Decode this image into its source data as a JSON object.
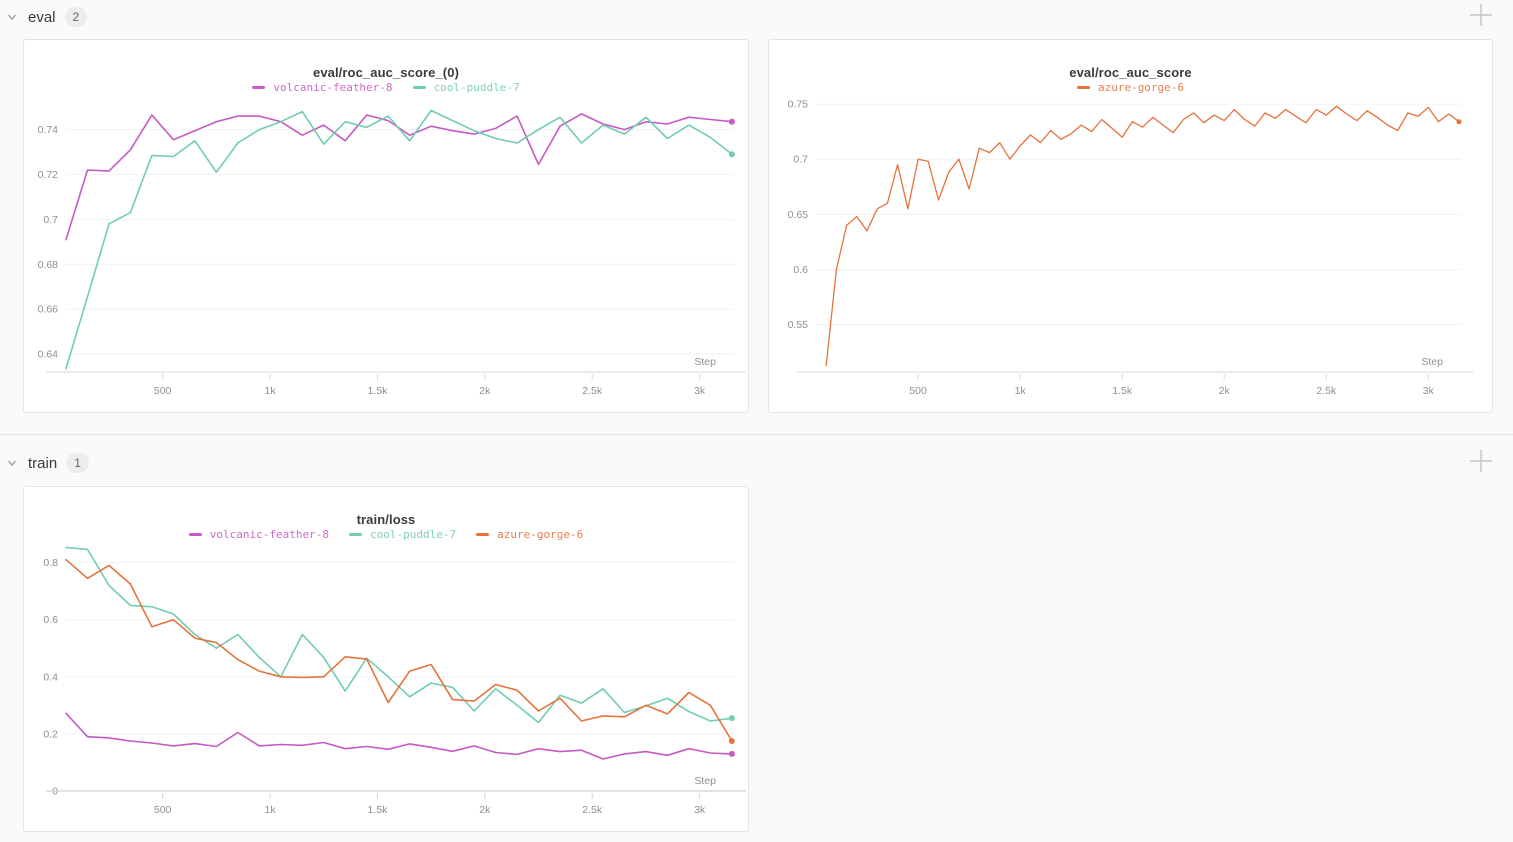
{
  "page": {
    "background": "#fafafa",
    "accent_colors": {
      "volcanic_feather_8": "#C65AC4",
      "cool_puddle_7": "#71CCB2",
      "azure_gorge_6": "#E6723C"
    }
  },
  "sections": [
    {
      "label": "eval",
      "count": "2"
    },
    {
      "label": "train",
      "count": "1"
    }
  ],
  "icons": {
    "collapse_chevron": "chevron-down-icon",
    "add_panel": "plus-icon"
  },
  "chart_data": [
    {
      "type": "line",
      "title": "eval/roc_auc_score_(0)",
      "xlabel": "Step",
      "legend_position": "top-center",
      "grid": "horizontal-only",
      "xlim": [
        50,
        3160
      ],
      "ylim": [
        0.632,
        0.7505
      ],
      "x_tick_values": [
        500,
        1000,
        1500,
        2000,
        2500,
        3000
      ],
      "x_tick_labels": [
        "500",
        "1k",
        "1.5k",
        "2k",
        "2.5k",
        "3k"
      ],
      "y_tick_values": [
        0.74,
        0.72,
        0.7,
        0.68,
        0.66,
        0.64
      ],
      "y_tick_labels": [
        "0.74",
        "0.72",
        "0.7",
        "0.68",
        "0.66",
        "0.64"
      ],
      "x": [
        50,
        150,
        250,
        350,
        450,
        550,
        650,
        750,
        850,
        950,
        1050,
        1150,
        1250,
        1350,
        1450,
        1550,
        1650,
        1750,
        1850,
        1950,
        2050,
        2150,
        2250,
        2350,
        2450,
        2550,
        2650,
        2750,
        2850,
        2950,
        3050,
        3150
      ],
      "series": [
        {
          "name": "volcanic-feather-8",
          "color": "#C65AC4",
          "values": [
            0.691,
            0.722,
            0.7215,
            0.731,
            0.7465,
            0.7355,
            0.7395,
            0.7435,
            0.746,
            0.746,
            0.7435,
            0.7375,
            0.742,
            0.735,
            0.7465,
            0.744,
            0.7375,
            0.7415,
            0.7395,
            0.738,
            0.7405,
            0.746,
            0.7245,
            0.7415,
            0.747,
            0.7425,
            0.74,
            0.7435,
            0.7425,
            0.7455,
            0.7445,
            0.7435
          ]
        },
        {
          "name": "cool-puddle-7",
          "color": "#71CCB2",
          "values": [
            0.6335,
            0.6655,
            0.698,
            0.703,
            0.7285,
            0.728,
            0.735,
            0.721,
            0.734,
            0.74,
            0.7435,
            0.748,
            0.7335,
            0.7435,
            0.741,
            0.746,
            0.735,
            0.7485,
            0.744,
            0.7395,
            0.736,
            0.734,
            0.74,
            0.7455,
            0.734,
            0.742,
            0.738,
            0.7455,
            0.736,
            0.742,
            0.7365,
            0.729
          ]
        }
      ]
    },
    {
      "type": "line",
      "title": "eval/roc_auc_score",
      "xlabel": "Step",
      "legend_position": "top-center",
      "grid": "horizontal-only",
      "xlim": [
        0,
        3160
      ],
      "ylim": [
        0.507,
        0.7555
      ],
      "x_tick_values": [
        500,
        1000,
        1500,
        2000,
        2500,
        3000
      ],
      "x_tick_labels": [
        "500",
        "1k",
        "1.5k",
        "2k",
        "2.5k",
        "3k"
      ],
      "y_tick_values": [
        0.75,
        0.7,
        0.65,
        0.6,
        0.55
      ],
      "y_tick_labels": [
        "0.75",
        "0.7",
        "0.65",
        "0.6",
        "0.55"
      ],
      "x": [
        50,
        100,
        150,
        200,
        250,
        300,
        350,
        400,
        450,
        500,
        550,
        600,
        650,
        700,
        750,
        800,
        850,
        900,
        950,
        1000,
        1050,
        1100,
        1150,
        1200,
        1250,
        1300,
        1350,
        1400,
        1450,
        1500,
        1550,
        1600,
        1650,
        1700,
        1750,
        1800,
        1850,
        1900,
        1950,
        2000,
        2050,
        2100,
        2150,
        2200,
        2250,
        2300,
        2350,
        2400,
        2450,
        2500,
        2550,
        2600,
        2650,
        2700,
        2750,
        2800,
        2850,
        2900,
        2950,
        3000,
        3050,
        3100,
        3150
      ],
      "series": [
        {
          "name": "azure-gorge-6",
          "color": "#E6723C",
          "values": [
            0.513,
            0.6,
            0.64,
            0.648,
            0.635,
            0.655,
            0.66,
            0.695,
            0.655,
            0.7,
            0.698,
            0.663,
            0.688,
            0.7,
            0.673,
            0.71,
            0.706,
            0.715,
            0.7,
            0.712,
            0.722,
            0.715,
            0.726,
            0.718,
            0.723,
            0.731,
            0.725,
            0.736,
            0.728,
            0.72,
            0.734,
            0.729,
            0.738,
            0.731,
            0.724,
            0.736,
            0.742,
            0.733,
            0.74,
            0.735,
            0.745,
            0.736,
            0.73,
            0.742,
            0.737,
            0.745,
            0.739,
            0.733,
            0.745,
            0.74,
            0.748,
            0.741,
            0.735,
            0.744,
            0.738,
            0.731,
            0.726,
            0.742,
            0.739,
            0.747,
            0.734,
            0.741,
            0.734
          ]
        }
      ]
    },
    {
      "type": "line",
      "title": "train/loss",
      "xlabel": "Step",
      "legend_position": "top-center",
      "grid": "horizontal-only",
      "xlim": [
        50,
        3160
      ],
      "ylim": [
        0,
        0.865
      ],
      "x_tick_values": [
        500,
        1000,
        1500,
        2000,
        2500,
        3000
      ],
      "x_tick_labels": [
        "500",
        "1k",
        "1.5k",
        "2k",
        "2.5k",
        "3k"
      ],
      "y_tick_values": [
        0.8,
        0.6,
        0.4,
        0.2,
        0
      ],
      "y_tick_labels": [
        "0.8",
        "0.6",
        "0.4",
        "0.2",
        "0"
      ],
      "x": [
        50,
        150,
        250,
        350,
        450,
        550,
        650,
        750,
        850,
        950,
        1050,
        1150,
        1250,
        1350,
        1450,
        1550,
        1650,
        1750,
        1850,
        1950,
        2050,
        2150,
        2250,
        2350,
        2450,
        2550,
        2650,
        2750,
        2850,
        2950,
        3050,
        3150
      ],
      "series": [
        {
          "name": "volcanic-feather-8",
          "color": "#C65AC4",
          "values": [
            0.272,
            0.19,
            0.186,
            0.175,
            0.168,
            0.158,
            0.166,
            0.156,
            0.205,
            0.158,
            0.163,
            0.16,
            0.17,
            0.148,
            0.156,
            0.146,
            0.165,
            0.153,
            0.139,
            0.158,
            0.135,
            0.128,
            0.148,
            0.138,
            0.143,
            0.112,
            0.13,
            0.138,
            0.125,
            0.148,
            0.133,
            0.13
          ]
        },
        {
          "name": "cool-puddle-7",
          "color": "#71CCB2",
          "values": [
            0.853,
            0.846,
            0.72,
            0.65,
            0.645,
            0.62,
            0.548,
            0.5,
            0.548,
            0.468,
            0.4,
            0.548,
            0.468,
            0.35,
            0.465,
            0.4,
            0.33,
            0.378,
            0.363,
            0.28,
            0.358,
            0.3,
            0.24,
            0.335,
            0.308,
            0.358,
            0.275,
            0.298,
            0.325,
            0.278,
            0.245,
            0.255
          ]
        },
        {
          "name": "azure-gorge-6",
          "color": "#E6723C",
          "values": [
            0.81,
            0.745,
            0.79,
            0.725,
            0.575,
            0.6,
            0.535,
            0.52,
            0.46,
            0.42,
            0.4,
            0.398,
            0.4,
            0.47,
            0.462,
            0.31,
            0.42,
            0.443,
            0.32,
            0.315,
            0.373,
            0.353,
            0.28,
            0.325,
            0.245,
            0.263,
            0.26,
            0.3,
            0.27,
            0.345,
            0.3,
            0.175
          ]
        }
      ]
    }
  ]
}
